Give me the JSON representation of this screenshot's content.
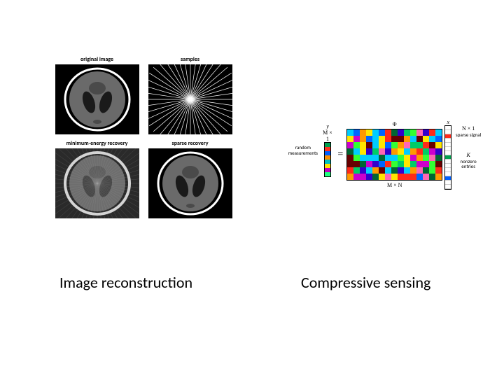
{
  "left": {
    "caption": "Image reconstruction",
    "panels": [
      {
        "title": "original image",
        "type": "phantom"
      },
      {
        "title": "samples",
        "type": "radial"
      },
      {
        "title": "minimum-energy recovery",
        "type": "phantom-noisy"
      },
      {
        "title": "sparse recovery",
        "type": "phantom"
      }
    ],
    "colors": {
      "bg": "#000000",
      "phantom_outline": "#ffffff",
      "phantom_brain": "#666666",
      "phantom_ventricle": "#222222",
      "phantom_dark": "#444444",
      "sample_line": "#ffffff",
      "noise_overlay": "#888888"
    },
    "panel_size": {
      "w": 120,
      "h": 100
    },
    "title_fontsize": 8
  },
  "right": {
    "caption": "Compressive sensing",
    "y": {
      "top": "y",
      "side": "random\nmeasurements",
      "dim": "M × 1",
      "colors": [
        "#00a050",
        "#ff3020",
        "#0060ff",
        "#ff9000",
        "#00c0c0",
        "#ffe000",
        "#c000c0",
        "#20ff80"
      ]
    },
    "Phi": {
      "top": "Φ",
      "dim": "M × N",
      "rows": 8,
      "cols": 15,
      "palette": [
        "#ff2a1a",
        "#ff9900",
        "#ffe600",
        "#33ff33",
        "#00cc66",
        "#00ccff",
        "#0066ff",
        "#3300cc",
        "#cc00cc",
        "#ff66b3",
        "#006633",
        "#660000"
      ]
    },
    "x": {
      "top": "x",
      "side": "sparse\nsignal",
      "dim": "N × 1",
      "K_label": "K",
      "K_desc": "nonzero\nentries",
      "len": 15,
      "nonzero_indices": [
        2,
        7,
        12
      ],
      "nonzero_colors": [
        "#ff2a1a",
        "#00a050",
        "#0060ff"
      ],
      "bg": "#ffffff"
    },
    "fontsize": {
      "symbol": 10,
      "dim": 8,
      "side": 7
    }
  },
  "caption_fontsize": 22,
  "background_color": "#ffffff"
}
